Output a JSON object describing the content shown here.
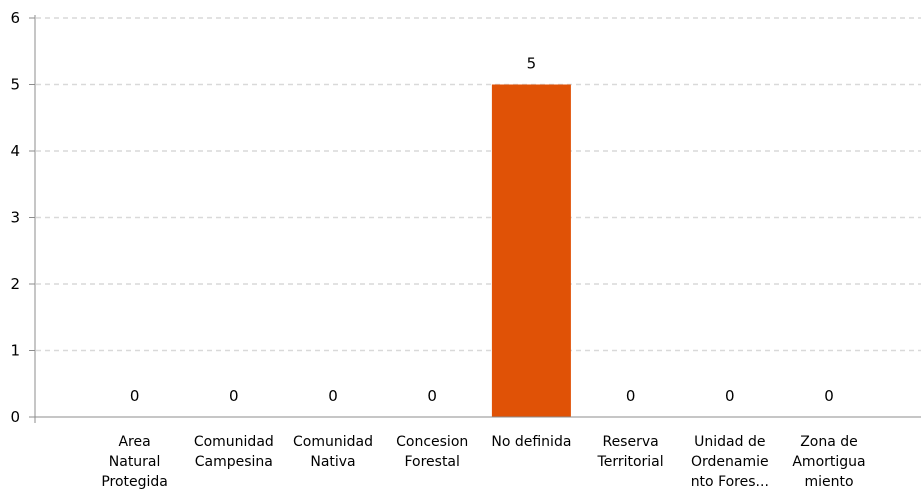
{
  "chart_data": {
    "type": "bar",
    "categories": [
      [
        "Area",
        "Natural",
        "Protegida"
      ],
      [
        "Comunidad",
        "Campesina"
      ],
      [
        "Comunidad",
        "Nativa"
      ],
      [
        "Concesion",
        "Forestal"
      ],
      [
        "No definida"
      ],
      [
        "Reserva",
        "Territorial"
      ],
      [
        "Unidad de",
        "Ordenamie",
        "nto Fores..."
      ],
      [
        "Zona de",
        "Amortigua",
        "miento"
      ]
    ],
    "values": [
      0,
      0,
      0,
      0,
      5,
      0,
      0,
      0
    ],
    "data_labels": [
      "0",
      "0",
      "0",
      "0",
      "5",
      "0",
      "0",
      "0"
    ],
    "ylim": [
      0,
      6
    ],
    "yticks": [
      0,
      1,
      2,
      3,
      4,
      5,
      6
    ],
    "title": "",
    "xlabel": "",
    "ylabel": "",
    "grid": true,
    "legend": "none",
    "bar_color": "#e05206"
  }
}
